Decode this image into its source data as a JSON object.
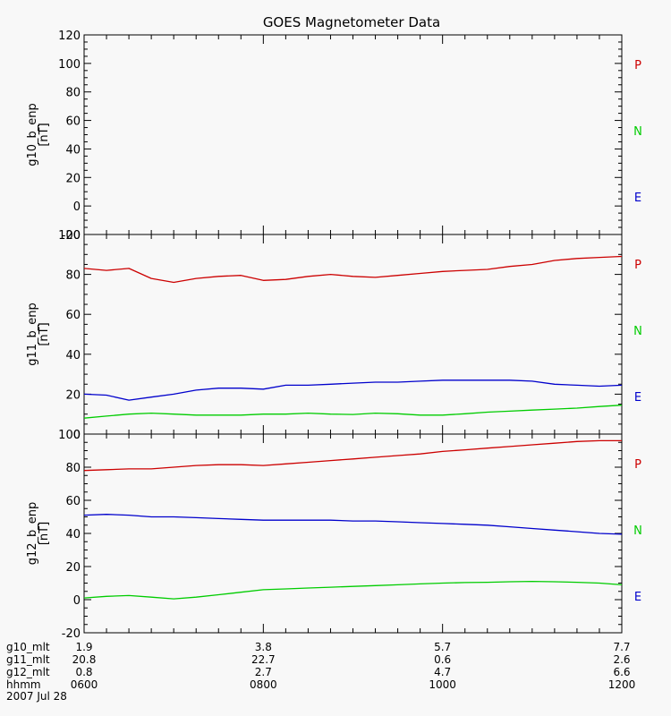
{
  "colors": {
    "P": "#cc0000",
    "N": "#00cc00",
    "E": "#0000cc",
    "axis": "#000000",
    "background": "#f8f8f8"
  },
  "chart_data": {
    "type": "line",
    "title": "GOES Magnetometer Data",
    "x_range": [
      6,
      12
    ],
    "x_tick_major_hours": [
      6,
      8,
      10,
      12
    ],
    "panels": [
      {
        "ylabel": "g10_b_enp",
        "yunit": "[nT]",
        "ylim": [
          -20,
          120
        ],
        "yticks": [
          -20,
          0,
          20,
          40,
          60,
          80,
          100,
          120
        ],
        "legend": [
          "P",
          "N",
          "E"
        ],
        "series": []
      },
      {
        "ylabel": "g11_b_enp",
        "yunit": "[nT]",
        "ylim": [
          0,
          100
        ],
        "yticks": [
          0,
          20,
          40,
          60,
          80,
          100
        ],
        "legend": [
          "P",
          "N",
          "E"
        ],
        "series": [
          {
            "name": "P",
            "x": [
              6.0,
              6.25,
              6.5,
              6.75,
              7.0,
              7.25,
              7.5,
              7.75,
              8.0,
              8.25,
              8.5,
              8.75,
              9.0,
              9.25,
              9.5,
              9.75,
              10.0,
              10.25,
              10.5,
              10.75,
              11.0,
              11.25,
              11.5,
              11.75,
              12.0
            ],
            "y": [
              83,
              82,
              83,
              78,
              76,
              78,
              79,
              79.5,
              77,
              77.5,
              79,
              80,
              79,
              78.5,
              79.5,
              80.5,
              81.5,
              82,
              82.5,
              84,
              85,
              87,
              88,
              88.5,
              89
            ]
          },
          {
            "name": "N",
            "x": [
              6.0,
              6.25,
              6.5,
              6.75,
              7.0,
              7.25,
              7.5,
              7.75,
              8.0,
              8.25,
              8.5,
              8.75,
              9.0,
              9.25,
              9.5,
              9.75,
              10.0,
              10.25,
              10.5,
              10.75,
              11.0,
              11.25,
              11.5,
              11.75,
              12.0
            ],
            "y": [
              8,
              9,
              10,
              10.5,
              10,
              9.5,
              9.5,
              9.5,
              10,
              10,
              10.5,
              10,
              9.8,
              10.5,
              10.2,
              9.5,
              9.5,
              10.2,
              11,
              11.5,
              12,
              12.5,
              13,
              13.8,
              14.5
            ]
          },
          {
            "name": "E",
            "x": [
              6.0,
              6.25,
              6.5,
              6.75,
              7.0,
              7.25,
              7.5,
              7.75,
              8.0,
              8.25,
              8.5,
              8.75,
              9.0,
              9.25,
              9.5,
              9.75,
              10.0,
              10.25,
              10.5,
              10.75,
              11.0,
              11.25,
              11.5,
              11.75,
              12.0
            ],
            "y": [
              20,
              19.5,
              17,
              18.5,
              20,
              22,
              23,
              23,
              22.5,
              24.5,
              24.5,
              25,
              25.5,
              26,
              26,
              26.5,
              27,
              27,
              27,
              27,
              26.5,
              25,
              24.5,
              24,
              24.5
            ]
          }
        ]
      },
      {
        "ylabel": "g12_b_enp",
        "yunit": "[nT]",
        "ylim": [
          -20,
          100
        ],
        "yticks": [
          -20,
          0,
          20,
          40,
          60,
          80,
          100
        ],
        "legend": [
          "P",
          "N",
          "E"
        ],
        "series": [
          {
            "name": "P",
            "x": [
              6.0,
              6.25,
              6.5,
              6.75,
              7.0,
              7.25,
              7.5,
              7.75,
              8.0,
              8.25,
              8.5,
              8.75,
              9.0,
              9.25,
              9.5,
              9.75,
              10.0,
              10.25,
              10.5,
              10.75,
              11.0,
              11.25,
              11.5,
              11.75,
              12.0
            ],
            "y": [
              78,
              78.5,
              79,
              79,
              80,
              81,
              81.5,
              81.5,
              81,
              82,
              83,
              84,
              85,
              86,
              87,
              88,
              89.5,
              90.5,
              91.5,
              92.5,
              93.5,
              94.5,
              95.5,
              96,
              96
            ]
          },
          {
            "name": "N",
            "x": [
              6.0,
              6.25,
              6.5,
              6.75,
              7.0,
              7.25,
              7.5,
              7.75,
              8.0,
              8.25,
              8.5,
              8.75,
              9.0,
              9.25,
              9.5,
              9.75,
              10.0,
              10.25,
              10.5,
              10.75,
              11.0,
              11.25,
              11.5,
              11.75,
              12.0
            ],
            "y": [
              1,
              2,
              2.5,
              1.5,
              0.5,
              1.5,
              3,
              4.5,
              6,
              6.5,
              7,
              7.5,
              8,
              8.5,
              9,
              9.5,
              10,
              10.3,
              10.5,
              10.8,
              11,
              10.8,
              10.5,
              10,
              9
            ]
          },
          {
            "name": "E",
            "x": [
              6.0,
              6.25,
              6.5,
              6.75,
              7.0,
              7.25,
              7.5,
              7.75,
              8.0,
              8.25,
              8.5,
              8.75,
              9.0,
              9.25,
              9.5,
              9.75,
              10.0,
              10.25,
              10.5,
              10.75,
              11.0,
              11.25,
              11.5,
              11.75,
              12.0
            ],
            "y": [
              51,
              51.5,
              51,
              50,
              50,
              49.5,
              49,
              48.5,
              48,
              48,
              48,
              48,
              47.5,
              47.5,
              47,
              46.5,
              46,
              45.5,
              45,
              44,
              43,
              42,
              41,
              40,
              39.5
            ]
          }
        ]
      }
    ],
    "bottom_axis": {
      "rows": [
        {
          "label": "g10_mlt",
          "values": [
            "1.9",
            "3.8",
            "5.7",
            "7.7"
          ]
        },
        {
          "label": "g11_mlt",
          "values": [
            "20.8",
            "22.7",
            "0.6",
            "2.6"
          ]
        },
        {
          "label": "g12_mlt",
          "values": [
            "0.8",
            "2.7",
            "4.7",
            "6.6"
          ]
        },
        {
          "label": "hhmm",
          "values": [
            "0600",
            "0800",
            "1000",
            "1200"
          ]
        }
      ],
      "date": "2007 Jul 28"
    }
  }
}
